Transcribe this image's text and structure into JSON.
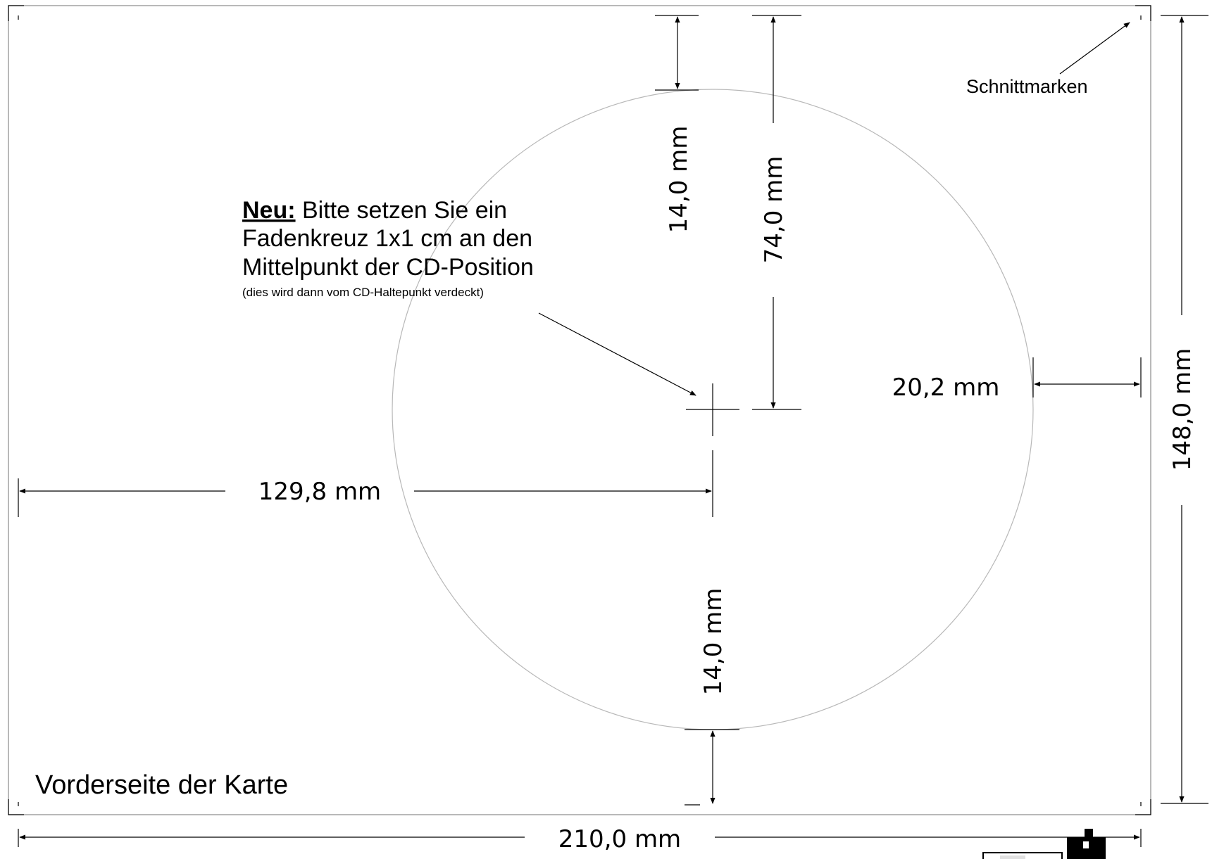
{
  "card": {
    "title": "Vorderseite der Karte",
    "cut_marks_label": "Schnittmarken"
  },
  "note": {
    "emphasis": "Neu:",
    "line1_rest": " Bitte setzen Sie ein",
    "line2": "Fadenkreuz 1x1 cm an den",
    "line3": "Mittelpunkt der CD-Position",
    "line4": "(dies wird dann vom CD-Haltepunkt verdeckt)"
  },
  "dimensions": {
    "width_total": "210,0 mm",
    "height_total": "148,0 mm",
    "top_margin_to_circle": "14,0 mm",
    "top_to_center": "74,0 mm",
    "left_to_center": "129,8 mm",
    "circle_to_right_edge": "20,2 mm",
    "circle_to_bottom_edge": "14,0 mm"
  },
  "edge_fragment": ":"
}
